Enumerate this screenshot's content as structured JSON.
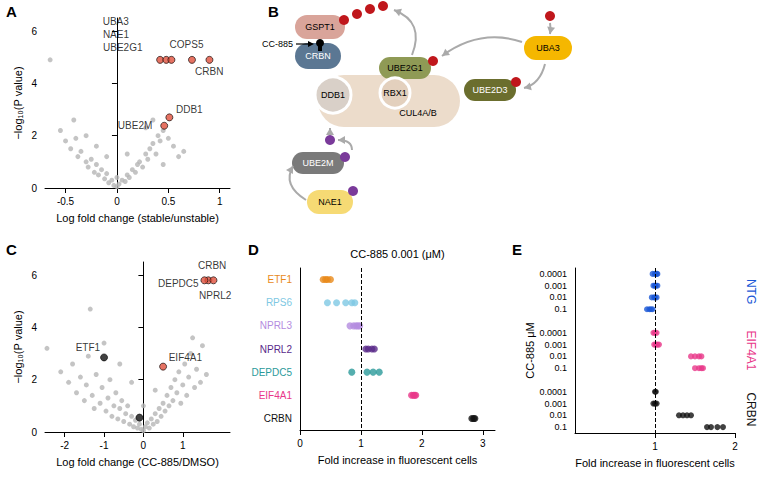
{
  "chart_data": [
    {
      "panel": "A",
      "type": "scatter",
      "x_label": "Log fold change (stable/unstable)",
      "y_label": "−log₁₀(P value)",
      "xlim": [
        -0.7,
        1.1
      ],
      "xticks": [
        -0.5,
        0,
        0.5,
        1
      ],
      "ylim": [
        0,
        6.5
      ],
      "yticks": [
        0,
        2,
        4,
        6
      ],
      "grid": false,
      "color": "#b5b5b5",
      "points": [
        [
          -0.65,
          4.9
        ],
        [
          -0.55,
          2.2
        ],
        [
          -0.5,
          1.8
        ],
        [
          -0.45,
          1.5
        ],
        [
          -0.4,
          1.9
        ],
        [
          -0.38,
          1.2
        ],
        [
          -0.35,
          1.4
        ],
        [
          -0.3,
          1.0
        ],
        [
          -0.28,
          0.8
        ],
        [
          -0.25,
          1.1
        ],
        [
          -0.22,
          0.6
        ],
        [
          -0.2,
          0.9
        ],
        [
          -0.18,
          0.5
        ],
        [
          -0.15,
          0.7
        ],
        [
          -0.12,
          0.35
        ],
        [
          -0.1,
          0.55
        ],
        [
          -0.08,
          0.2
        ],
        [
          -0.05,
          0.3
        ],
        [
          -0.03,
          0.1
        ],
        [
          0,
          0.05
        ],
        [
          0.02,
          0.15
        ],
        [
          0.05,
          0.3
        ],
        [
          0.08,
          0.25
        ],
        [
          0.1,
          0.5
        ],
        [
          0.12,
          0.4
        ],
        [
          0.15,
          0.7
        ],
        [
          0.18,
          0.6
        ],
        [
          0.2,
          0.9
        ],
        [
          0.22,
          1.0
        ],
        [
          0.25,
          0.8
        ],
        [
          0.28,
          1.3
        ],
        [
          0.3,
          1.1
        ],
        [
          0.32,
          1.5
        ],
        [
          0.35,
          1.7
        ],
        [
          0.38,
          1.3
        ],
        [
          0.4,
          2.0
        ],
        [
          0.42,
          1.8
        ],
        [
          0.45,
          2.2
        ],
        [
          0.5,
          1.9
        ],
        [
          0.55,
          1.6
        ],
        [
          0.6,
          1.2
        ],
        [
          0.28,
          2.3
        ],
        [
          0.35,
          2.6
        ],
        [
          -0.42,
          2.6
        ],
        [
          -0.3,
          2.0
        ],
        [
          0.0,
          0.4
        ],
        [
          -0.1,
          1.2
        ],
        [
          0.1,
          1.3
        ],
        [
          0.45,
          0.9
        ],
        [
          0.65,
          1.4
        ],
        [
          -0.2,
          1.6
        ]
      ],
      "highlights": [
        {
          "label": "UBA3",
          "x": 0.42,
          "y": 4.9,
          "color": "#e0503c"
        },
        {
          "label": "NAE1",
          "x": 0.48,
          "y": 4.9,
          "color": "#e0503c"
        },
        {
          "label": "UBE2G1",
          "x": 0.53,
          "y": 4.9,
          "color": "#e0503c"
        },
        {
          "label": "COPS5",
          "x": 0.73,
          "y": 4.9,
          "color": "#e0503c"
        },
        {
          "label": "CRBN",
          "x": 0.9,
          "y": 4.9,
          "color": "#e0503c"
        },
        {
          "label": "DDB1",
          "x": 0.51,
          "y": 2.7,
          "color": "#e0503c"
        },
        {
          "label": "UBE2M",
          "x": 0.46,
          "y": 2.38,
          "color": "#e0503c"
        }
      ]
    },
    {
      "panel": "C",
      "type": "scatter",
      "x_label": "Log fold change (CC-885/DMSO)",
      "y_label": "−log₁₀(P value)",
      "xlim": [
        -2.5,
        2.2
      ],
      "xticks": [
        -2,
        -1,
        0,
        1
      ],
      "ylim": [
        0,
        6.5
      ],
      "yticks": [
        0,
        2,
        4,
        6
      ],
      "grid": false,
      "color": "#b5b5b5",
      "points": [
        [
          -2.45,
          3.2
        ],
        [
          -1.35,
          4.7
        ],
        [
          -2.1,
          2.3
        ],
        [
          -1.9,
          1.9
        ],
        [
          -1.8,
          2.6
        ],
        [
          -1.7,
          1.5
        ],
        [
          -1.6,
          2.1
        ],
        [
          -1.5,
          1.2
        ],
        [
          -1.45,
          1.8
        ],
        [
          -1.4,
          2.9
        ],
        [
          -1.3,
          1.4
        ],
        [
          -1.25,
          0.9
        ],
        [
          -1.2,
          2.2
        ],
        [
          -1.1,
          1.1
        ],
        [
          -1.05,
          1.7
        ],
        [
          -0.95,
          0.8
        ],
        [
          -0.9,
          1.3
        ],
        [
          -0.85,
          2.0
        ],
        [
          -0.8,
          0.6
        ],
        [
          -0.75,
          1.0
        ],
        [
          -0.7,
          1.5
        ],
        [
          -0.65,
          0.5
        ],
        [
          -0.6,
          0.9
        ],
        [
          -0.55,
          1.2
        ],
        [
          -0.5,
          0.4
        ],
        [
          -0.45,
          0.7
        ],
        [
          -0.4,
          1.0
        ],
        [
          -0.35,
          0.3
        ],
        [
          -0.3,
          0.6
        ],
        [
          -0.25,
          0.2
        ],
        [
          -0.2,
          0.45
        ],
        [
          -0.15,
          0.15
        ],
        [
          -0.1,
          0.3
        ],
        [
          -0.05,
          0.1
        ],
        [
          0,
          0.05
        ],
        [
          0.05,
          0.2
        ],
        [
          0.1,
          0.35
        ],
        [
          0.15,
          0.15
        ],
        [
          0.2,
          0.5
        ],
        [
          0.25,
          0.3
        ],
        [
          0.3,
          0.7
        ],
        [
          0.35,
          0.4
        ],
        [
          0.4,
          0.9
        ],
        [
          0.45,
          0.6
        ],
        [
          0.5,
          1.1
        ],
        [
          0.55,
          0.8
        ],
        [
          0.6,
          1.4
        ],
        [
          0.65,
          1.0
        ],
        [
          0.7,
          1.7
        ],
        [
          0.75,
          1.2
        ],
        [
          0.8,
          2.0
        ],
        [
          0.85,
          1.5
        ],
        [
          0.9,
          2.3
        ],
        [
          0.95,
          1.1
        ],
        [
          1.0,
          1.8
        ],
        [
          1.05,
          2.6
        ],
        [
          1.1,
          1.4
        ],
        [
          1.15,
          2.1
        ],
        [
          1.2,
          3.0
        ],
        [
          1.3,
          1.7
        ],
        [
          1.35,
          2.4
        ],
        [
          1.45,
          1.9
        ],
        [
          1.5,
          3.3
        ],
        [
          1.6,
          2.2
        ],
        [
          -1.0,
          3.4
        ],
        [
          -0.6,
          2.6
        ],
        [
          0.3,
          1.6
        ],
        [
          -0.3,
          1.9
        ],
        [
          1.25,
          3.6
        ],
        [
          0.0,
          1.0
        ]
      ],
      "highlights": [
        {
          "label": "CRBN",
          "x": 1.65,
          "y": 5.8,
          "color": "#e0503c"
        },
        {
          "label": "DEPDC5",
          "x": 1.55,
          "y": 5.8,
          "color": "#e0503c"
        },
        {
          "label": "NPRL2",
          "x": 1.78,
          "y": 5.8,
          "color": "#e0503c"
        },
        {
          "label": "EIF4A1",
          "x": 0.5,
          "y": 2.5,
          "color": "#e0503c"
        },
        {
          "label": "ETF1",
          "x": -1.0,
          "y": 2.85,
          "color": "#111111"
        },
        {
          "x": -0.1,
          "y": 0.55,
          "color": "#111111"
        }
      ]
    },
    {
      "panel": "D",
      "type": "strip",
      "orientation": "horizontal",
      "title": "CC-885 0.001 (μM)",
      "x_label": "Fold increase in fluorescent cells",
      "xlim": [
        0,
        3.2
      ],
      "xticks": [
        0,
        1,
        2,
        3
      ],
      "grid": false,
      "reference_x": 1,
      "categories": [
        "ETF1",
        "RPS6",
        "NPRL3",
        "NPRL2",
        "DEPDC5",
        "EIF4A1",
        "CRBN"
      ],
      "colors": [
        "#e8891a",
        "#7ec8e3",
        "#b48ce0",
        "#5a2a8a",
        "#2a9a9a",
        "#e8388a",
        "#111111"
      ],
      "values": [
        [
          0.38,
          0.42,
          0.45,
          0.5
        ],
        [
          0.45,
          0.6,
          0.75,
          0.85,
          0.9
        ],
        [
          0.82,
          0.88,
          0.92,
          0.95,
          0.98
        ],
        [
          1.08,
          1.12,
          1.18,
          1.22
        ],
        [
          0.85,
          1.1,
          1.2,
          1.3
        ],
        [
          1.83,
          1.86,
          1.88,
          1.9
        ],
        [
          2.82,
          2.85,
          2.87
        ]
      ]
    },
    {
      "panel": "E",
      "type": "strip",
      "orientation": "horizontal",
      "x_label": "Fold increase in fluorescent cells",
      "y_label": "CC-885 μM",
      "xlim": [
        0,
        2
      ],
      "xticks": [
        1,
        2
      ],
      "grid": false,
      "reference_x": 1,
      "categories": [
        "0.0001",
        "0.001",
        "0.01",
        "0.1"
      ],
      "series": [
        {
          "name": "NTG",
          "color": "#1a57d6",
          "values": [
            [
              0.97,
              1.0,
              1.02,
              1.03
            ],
            [
              0.98,
              1.0,
              1.01,
              1.03
            ],
            [
              0.96,
              0.99,
              1.0,
              1.02
            ],
            [
              0.9,
              0.93,
              0.95,
              0.97
            ]
          ]
        },
        {
          "name": "EIF4A1",
          "color": "#e8388a",
          "values": [
            [
              0.98,
              1.0,
              1.02
            ],
            [
              0.99,
              1.01,
              1.03,
              1.05
            ],
            [
              1.45,
              1.5,
              1.55,
              1.58
            ],
            [
              1.5,
              1.55,
              1.58,
              1.6
            ]
          ]
        },
        {
          "name": "CRBN",
          "color": "#111111",
          "values": [
            [
              1.0,
              1.01
            ],
            [
              0.98,
              1.0,
              1.02
            ],
            [
              1.3,
              1.35,
              1.4,
              1.45
            ],
            [
              1.65,
              1.7,
              1.78,
              1.85
            ]
          ]
        }
      ]
    }
  ],
  "diagram": {
    "panel": "B",
    "drug": "CC-885",
    "ubiquitin_color": "#c0171c",
    "nedd8_color": "#7a3a9a",
    "nodes": [
      {
        "label": "GSPT1",
        "color": "#d9a49a"
      },
      {
        "label": "CRBN",
        "color": "#5b7793"
      },
      {
        "label": "DDB1",
        "color": "#d9d0c8"
      },
      {
        "label": "CUL4A/B",
        "color": "#ecdccb"
      },
      {
        "label": "RBX1",
        "color": "#e3d0bd"
      },
      {
        "label": "UBE2G1",
        "color": "#8f9a55"
      },
      {
        "label": "UBA3",
        "color": "#f5b700"
      },
      {
        "label": "UBE2D3",
        "color": "#6b6e2e"
      },
      {
        "label": "UBE2M",
        "color": "#7a7a7a"
      },
      {
        "label": "NAE1",
        "color": "#f6da74"
      }
    ]
  }
}
